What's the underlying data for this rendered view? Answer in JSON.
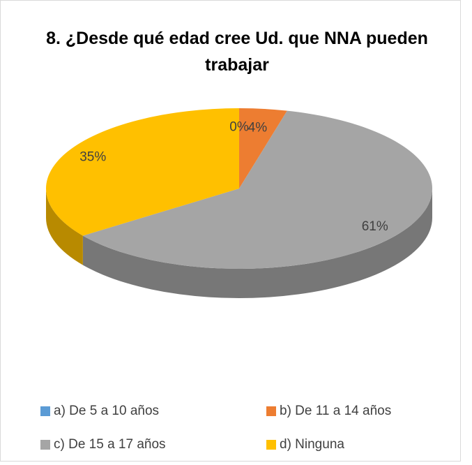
{
  "chart_data": {
    "type": "pie",
    "title": "8. ¿Desde qué edad cree Ud. que NNA pueden trabajar",
    "categories": [
      "a) De 5 a 10 años",
      "b) De 11 a 14 años",
      "c) De 15 a 17 años",
      "d) Ninguna"
    ],
    "values": [
      0,
      4,
      61,
      35
    ],
    "value_labels": [
      "0%",
      "4%",
      "61%",
      "35%"
    ],
    "colors": [
      "#5b9bd5",
      "#ed7d31",
      "#a5a5a5",
      "#ffc000"
    ],
    "legend": "bottom"
  }
}
